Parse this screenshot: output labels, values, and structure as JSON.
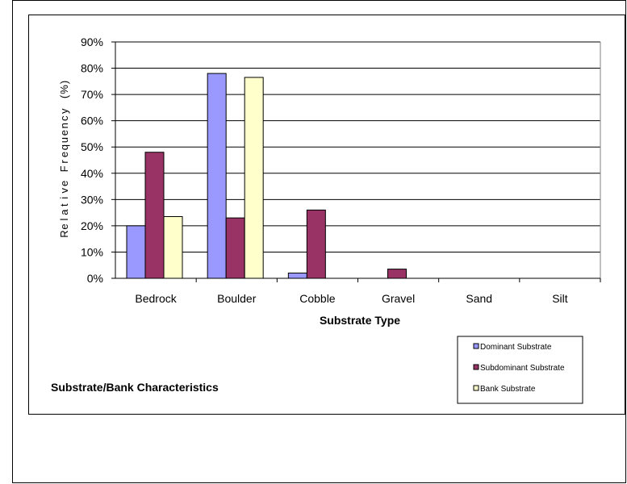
{
  "chart_data": {
    "type": "bar",
    "title": "",
    "xlabel": "Substrate Type",
    "ylabel": "Relative Frequency (%)",
    "ylim": [
      0,
      0.9
    ],
    "yticks": [
      "0%",
      "10%",
      "20%",
      "30%",
      "40%",
      "50%",
      "60%",
      "70%",
      "80%",
      "90%"
    ],
    "categories": [
      "Bedrock",
      "Boulder",
      "Cobble",
      "Gravel",
      "Sand",
      "Silt"
    ],
    "series": [
      {
        "name": "Dominant Substrate",
        "color": "#9999ff",
        "values": [
          0.2,
          0.78,
          0.02,
          0,
          0,
          0
        ]
      },
      {
        "name": "Subdominant Substrate",
        "color": "#993366",
        "values": [
          0.48,
          0.23,
          0.26,
          0.035,
          0,
          0
        ]
      },
      {
        "name": "Bank Substrate",
        "color": "#ffffcc",
        "values": [
          0.235,
          0.765,
          0,
          0,
          0,
          0
        ]
      }
    ],
    "grid": true,
    "legend_position": "bottom-right",
    "annotation": "Substrate/Bank Characteristics"
  }
}
